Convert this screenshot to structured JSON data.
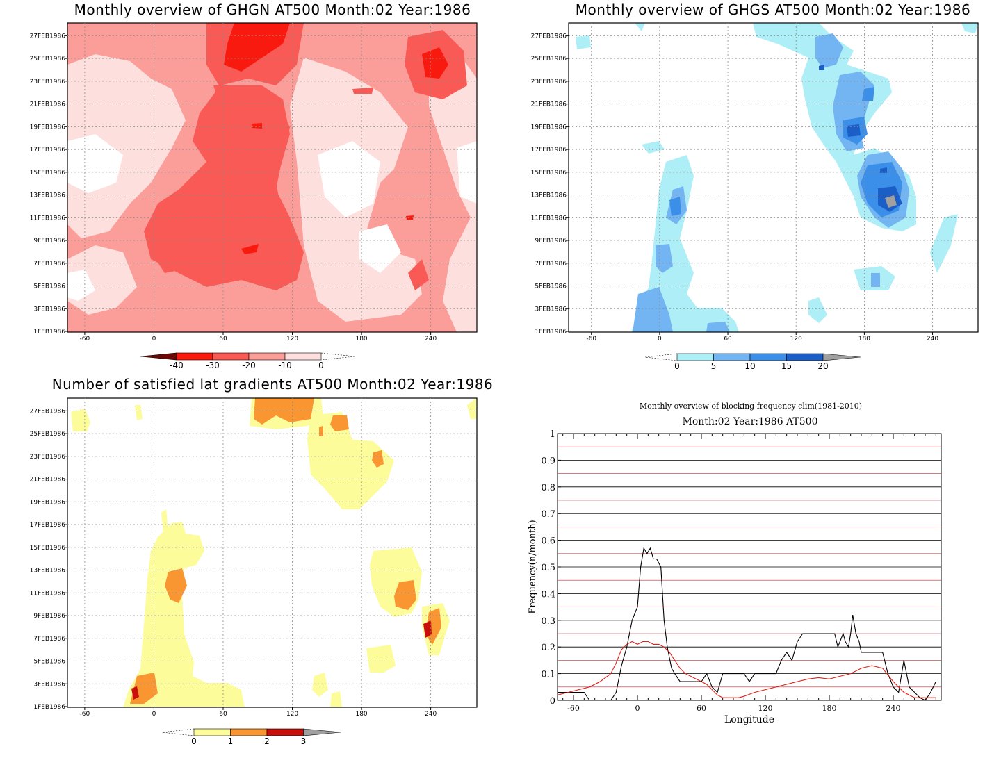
{
  "chart_data": [
    {
      "type": "heatmap",
      "title": "Monthly overview of GHGN AT500 Month:02 Year:1986",
      "x_ticks": [
        -60,
        0,
        60,
        120,
        180,
        240
      ],
      "xlim": [
        -75,
        280
      ],
      "y_ticks": [
        "1FEB1986",
        "3FEB1986",
        "5FEB1986",
        "7FEB1986",
        "9FEB1986",
        "11FEB1986",
        "13FEB1986",
        "15FEB1986",
        "17FEB1986",
        "19FEB1986",
        "21FEB1986",
        "23FEB1986",
        "25FEB1986",
        "27FEB1986"
      ],
      "colorbar": {
        "labels": [
          "-40",
          "-30",
          "-20",
          "-10",
          "0"
        ],
        "colors": [
          "#6b0a05",
          "#f81a0e",
          "#fa5a55",
          "#fb9e9a",
          "#fde0de"
        ]
      }
    },
    {
      "type": "heatmap",
      "title": "Monthly overview of GHGS AT500 Month:02 Year:1986",
      "x_ticks": [
        -60,
        0,
        60,
        120,
        180,
        240
      ],
      "xlim": [
        -80,
        280
      ],
      "y_ticks": [
        "1FEB1986",
        "3FEB1986",
        "5FEB1986",
        "7FEB1986",
        "9FEB1986",
        "11FEB1986",
        "13FEB1986",
        "15FEB1986",
        "17FEB1986",
        "19FEB1986",
        "21FEB1986",
        "23FEB1986",
        "25FEB1986",
        "27FEB1986"
      ],
      "colorbar": {
        "labels": [
          "0",
          "5",
          "10",
          "15",
          "20"
        ],
        "colors": [
          "#aeeef6",
          "#73b4f2",
          "#3b8fe8",
          "#1c5ec8",
          "#a0a0a0"
        ]
      }
    },
    {
      "type": "heatmap",
      "title": "Number of satisfied lat gradients AT500 Month:02 Year:1986",
      "x_ticks": [
        -60,
        0,
        60,
        120,
        180,
        240
      ],
      "xlim": [
        -75,
        280
      ],
      "y_ticks": [
        "1FEB1986",
        "3FEB1986",
        "5FEB1986",
        "7FEB1986",
        "9FEB1986",
        "11FEB1986",
        "13FEB1986",
        "15FEB1986",
        "17FEB1986",
        "19FEB1986",
        "21FEB1986",
        "23FEB1986",
        "25FEB1986",
        "27FEB1986"
      ],
      "colorbar": {
        "labels": [
          "0",
          "1",
          "2",
          "3"
        ],
        "colors": [
          "#fdfc9a",
          "#fa9631",
          "#c80f0b",
          "#a0a0a0"
        ]
      }
    },
    {
      "type": "line",
      "title": "Monthly overview of blocking frequency clim(1981-2010)",
      "subtitle": "Month:02 Year:1986  AT500",
      "xlabel": "Longitude",
      "ylabel": "Frequency(n/month)",
      "xlim": [
        -75,
        285
      ],
      "ylim": [
        0,
        1
      ],
      "x_ticks": [
        -60,
        0,
        60,
        120,
        180,
        240
      ],
      "y_ticks": [
        0,
        0.1,
        0.2,
        0.3,
        0.4,
        0.5,
        0.6,
        0.7,
        0.8,
        0.9,
        1
      ],
      "series": [
        {
          "color": "#000000",
          "x": [
            -75,
            -65,
            -50,
            -45,
            -40,
            -35,
            -30,
            -25,
            -20,
            -15,
            -10,
            -5,
            0,
            3,
            6,
            9,
            12,
            15,
            18,
            22,
            25,
            28,
            32,
            35,
            40,
            45,
            50,
            55,
            60,
            65,
            70,
            75,
            80,
            85,
            90,
            95,
            100,
            105,
            110,
            115,
            120,
            125,
            130,
            135,
            140,
            145,
            150,
            155,
            160,
            165,
            170,
            175,
            180,
            185,
            188,
            190,
            193,
            195,
            198,
            200,
            202,
            205,
            208,
            210,
            215,
            220,
            225,
            230,
            235,
            240,
            245,
            250,
            255,
            260,
            265,
            270,
            275,
            280
          ],
          "y": [
            0.03,
            0.03,
            0.03,
            0.0,
            0.0,
            0.0,
            0.0,
            0.0,
            0.03,
            0.13,
            0.2,
            0.3,
            0.35,
            0.5,
            0.57,
            0.55,
            0.57,
            0.53,
            0.53,
            0.5,
            0.3,
            0.2,
            0.12,
            0.1,
            0.07,
            0.07,
            0.07,
            0.07,
            0.07,
            0.1,
            0.05,
            0.03,
            0.1,
            0.1,
            0.1,
            0.1,
            0.1,
            0.07,
            0.1,
            0.1,
            0.1,
            0.1,
            0.1,
            0.15,
            0.18,
            0.15,
            0.22,
            0.25,
            0.25,
            0.25,
            0.25,
            0.25,
            0.25,
            0.25,
            0.2,
            0.22,
            0.25,
            0.22,
            0.2,
            0.25,
            0.32,
            0.25,
            0.22,
            0.18,
            0.18,
            0.18,
            0.18,
            0.18,
            0.1,
            0.05,
            0.03,
            0.15,
            0.05,
            0.03,
            0.01,
            0.0,
            0.03,
            0.07
          ]
        },
        {
          "color": "#e0201a",
          "x": [
            -75,
            -65,
            -55,
            -45,
            -35,
            -25,
            -20,
            -15,
            -10,
            -5,
            0,
            5,
            10,
            15,
            20,
            25,
            30,
            35,
            40,
            45,
            50,
            55,
            60,
            65,
            70,
            75,
            80,
            85,
            90,
            95,
            100,
            110,
            120,
            130,
            140,
            150,
            160,
            170,
            180,
            190,
            200,
            210,
            220,
            230,
            240,
            250,
            260,
            270,
            280
          ],
          "y": [
            0.02,
            0.03,
            0.04,
            0.05,
            0.07,
            0.1,
            0.14,
            0.19,
            0.21,
            0.22,
            0.21,
            0.22,
            0.22,
            0.21,
            0.21,
            0.2,
            0.18,
            0.15,
            0.12,
            0.1,
            0.09,
            0.08,
            0.07,
            0.06,
            0.04,
            0.02,
            0.01,
            0.01,
            0.01,
            0.01,
            0.015,
            0.03,
            0.04,
            0.05,
            0.06,
            0.07,
            0.08,
            0.085,
            0.08,
            0.09,
            0.1,
            0.12,
            0.13,
            0.12,
            0.07,
            0.03,
            0.01,
            0.01,
            0.01
          ]
        }
      ]
    }
  ]
}
